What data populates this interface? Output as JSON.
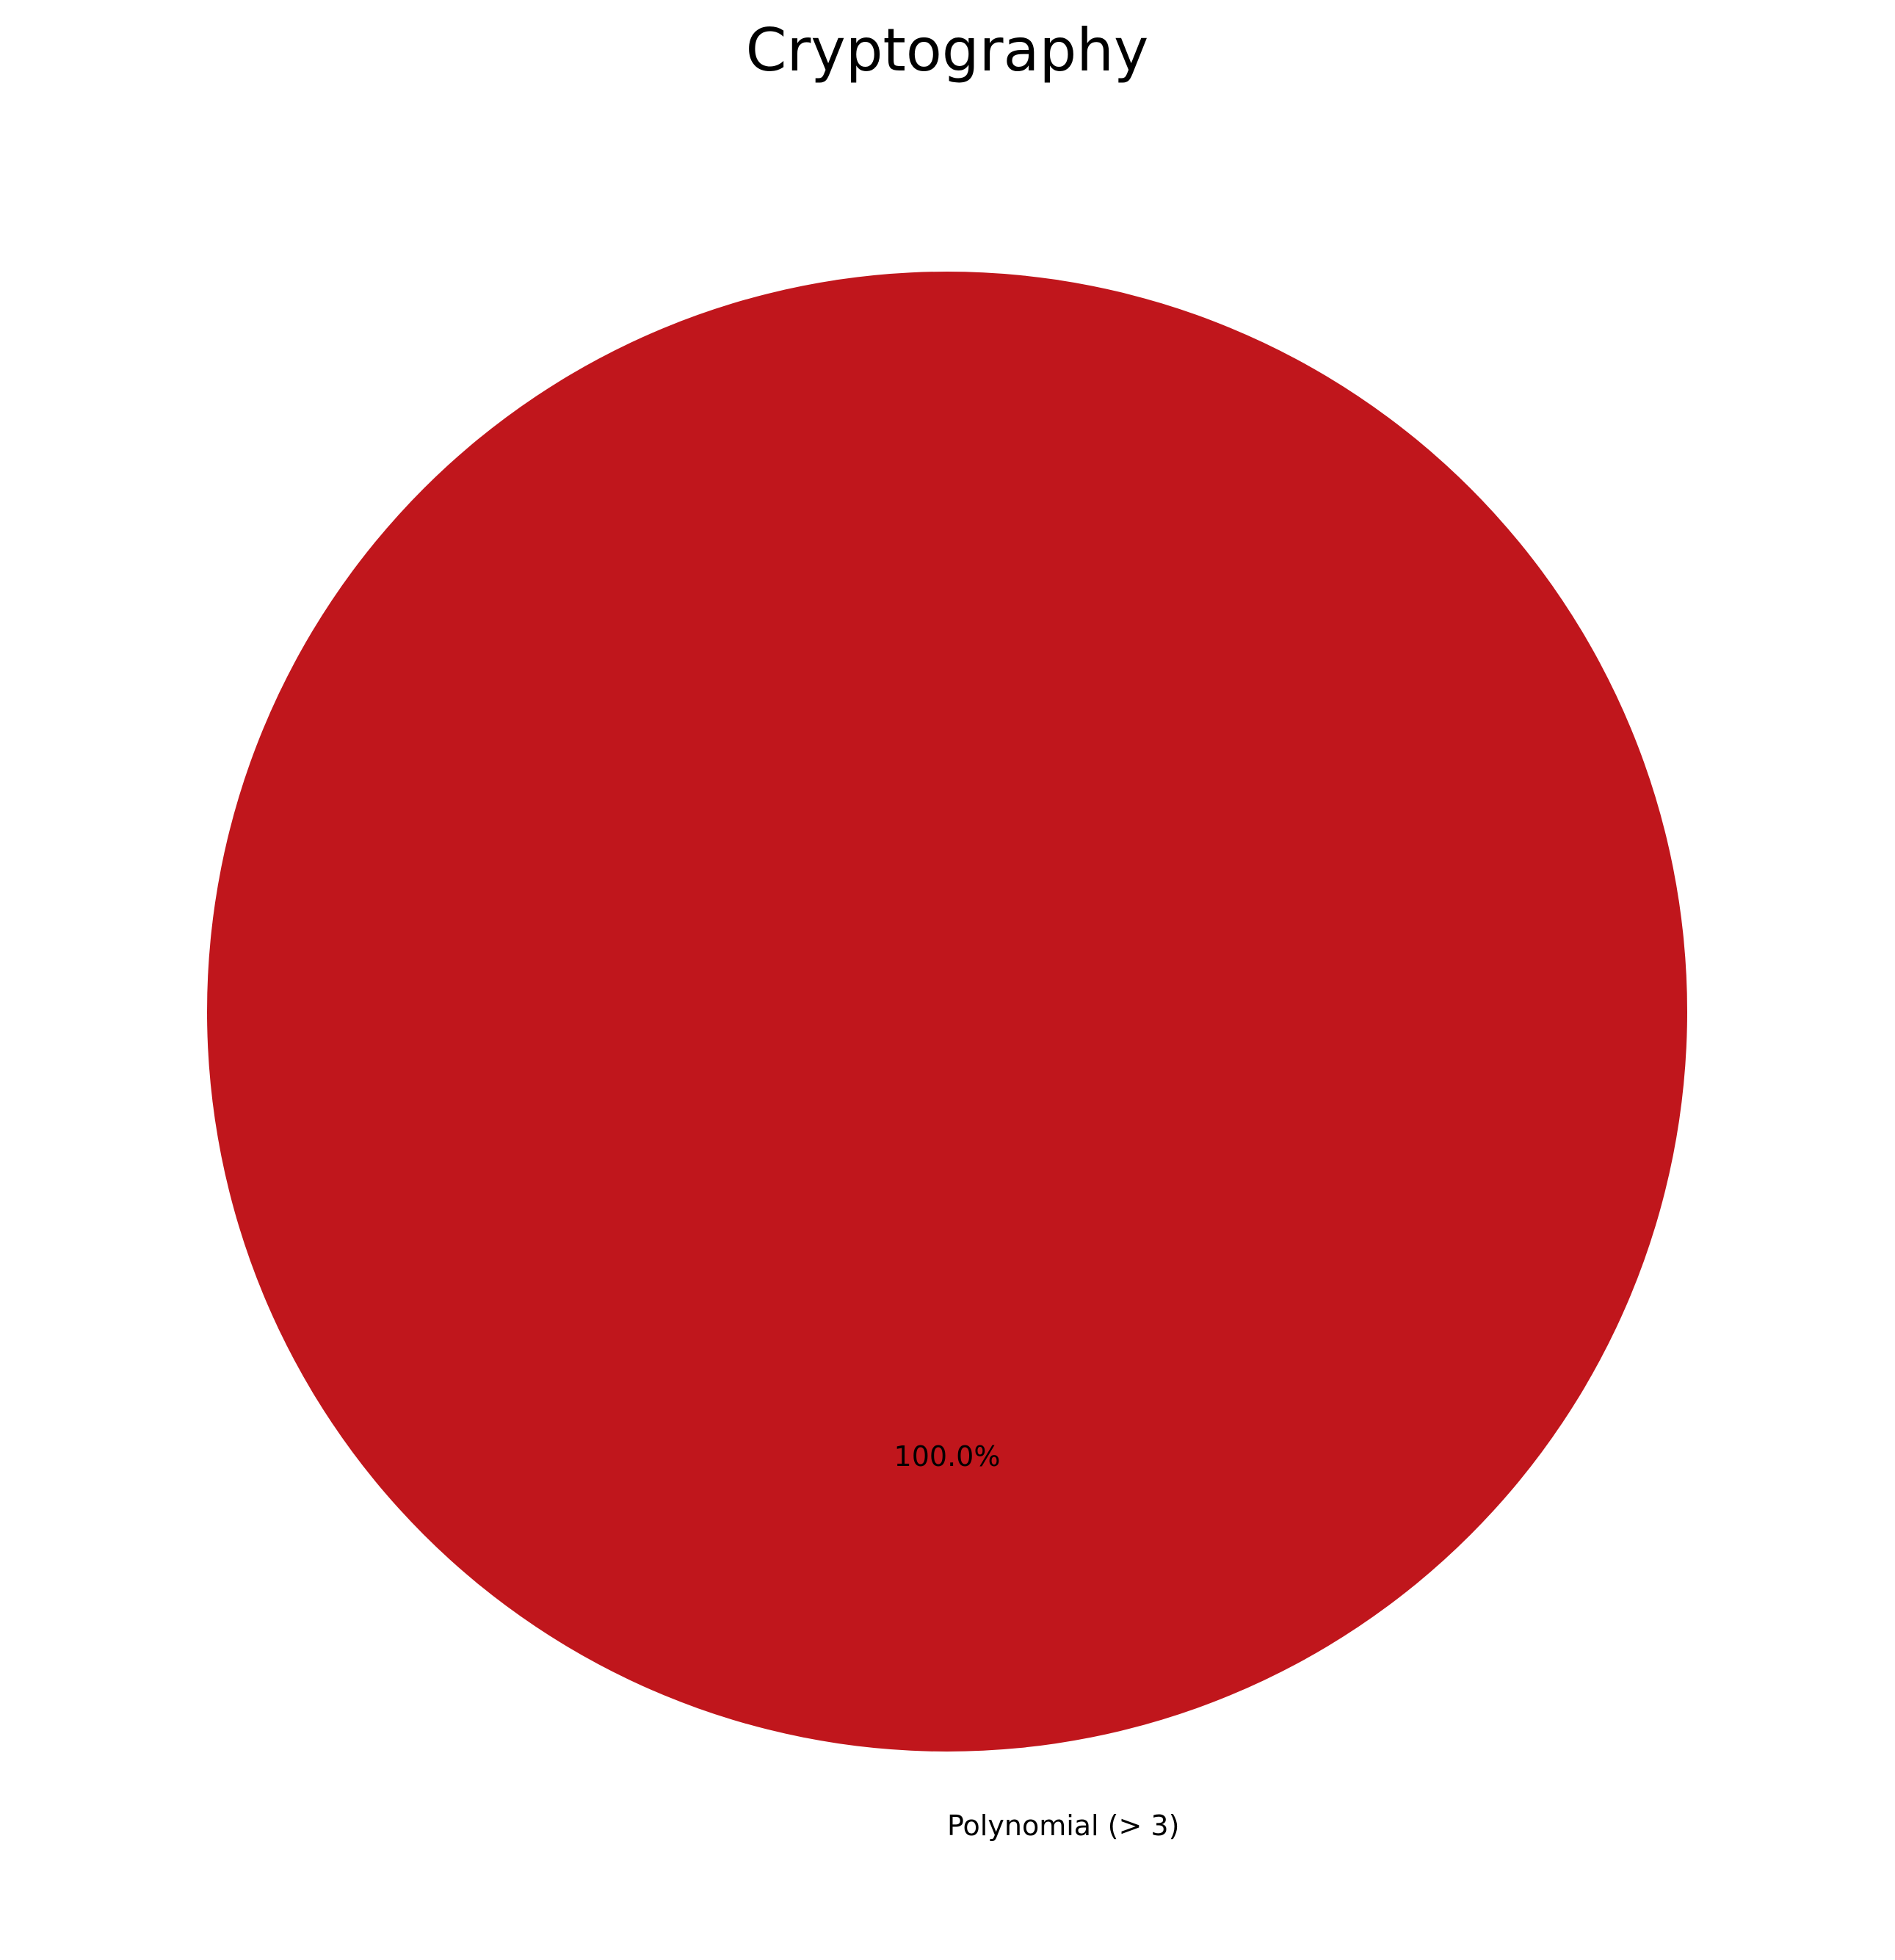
{
  "chart_data": {
    "type": "pie",
    "title": "Cryptography",
    "slices": [
      {
        "label": "Polynomial (> 3)",
        "value": 100.0,
        "pct_label": "100.0%",
        "color": "#c0161c"
      }
    ]
  }
}
